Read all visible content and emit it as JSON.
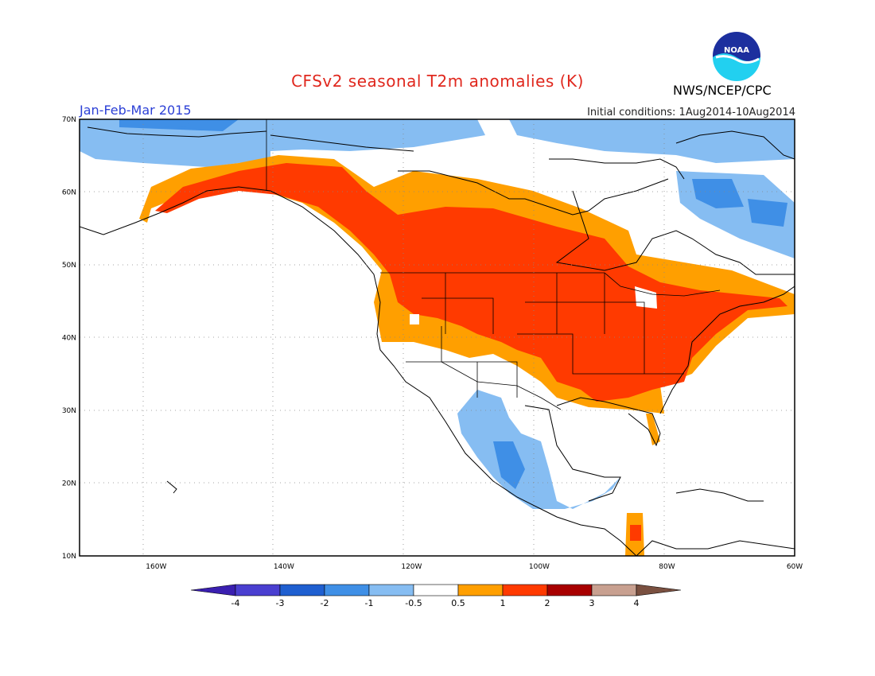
{
  "header": {
    "title": "CFSv2 seasonal T2m anomalies (K)",
    "period": "Jan-Feb-Mar 2015",
    "initial_conditions": "Initial conditions: 1Aug2014-10Aug2014",
    "agency": "NWS/NCEP/CPC",
    "logo_text": "NOAA"
  },
  "map": {
    "lon_range": [
      -172,
      -60
    ],
    "lat_range": [
      10,
      70
    ],
    "lat_ticks": [
      "10N",
      "20N",
      "30N",
      "40N",
      "50N",
      "60N",
      "70N"
    ],
    "lon_ticks": [
      "160W",
      "140W",
      "120W",
      "100W",
      "80W",
      "60W"
    ]
  },
  "colorbar": {
    "labels": [
      "-4",
      "-3",
      "-2",
      "-1",
      "-0.5",
      "0.5",
      "1",
      "2",
      "3",
      "4"
    ],
    "colors": [
      "#3a1fb0",
      "#4a3fd0",
      "#1f5fd0",
      "#3f8fe6",
      "#86bdf2",
      "#ffffff",
      "#ff9f00",
      "#ff3a00",
      "#a80000",
      "#c8a090",
      "#7a5040"
    ]
  }
}
